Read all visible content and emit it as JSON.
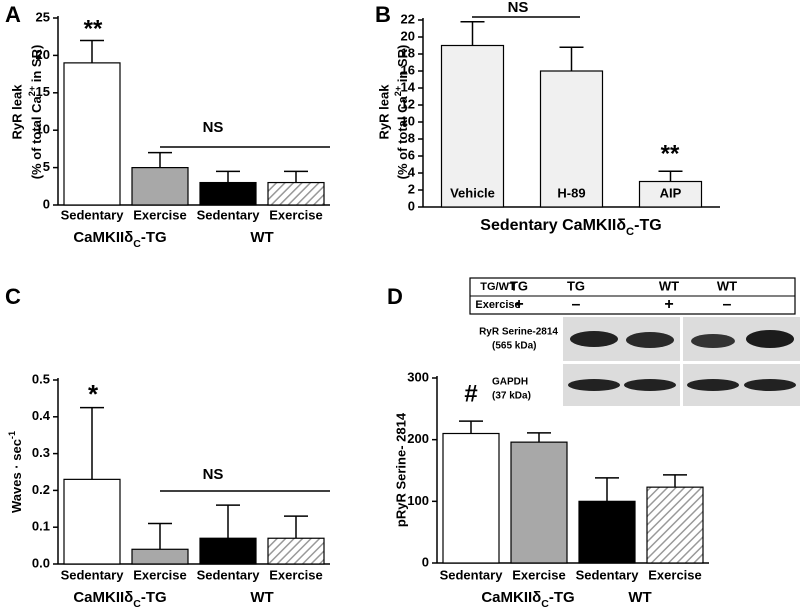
{
  "chart_data": [
    {
      "type": "bar",
      "label": "A",
      "ylabel": [
        "RyR leak",
        [
          "(% of total Ca",
          "2+",
          " in SR)"
        ]
      ],
      "categories": [
        "Sedentary",
        "Exercise",
        "Sedentary",
        "Exercise"
      ],
      "groups": [
        [
          "CaMKIIδ",
          "C",
          "-TG"
        ],
        "WT"
      ],
      "values": [
        19,
        5,
        3,
        3
      ],
      "errors": [
        3,
        2,
        1.5,
        1.5
      ],
      "colors": [
        "#ffffff",
        "#a8a8a8",
        "#000000",
        "#ffffff"
      ],
      "hatched": [
        false,
        false,
        false,
        true
      ],
      "annotations": [
        "**",
        "NS"
      ],
      "ylim": [
        0,
        25
      ],
      "yticks": [
        0,
        5,
        10,
        15,
        20,
        25
      ]
    },
    {
      "type": "bar",
      "label": "B",
      "ylabel": [
        "RyR leak",
        [
          "(% of total Ca",
          "2+",
          " in SR)"
        ]
      ],
      "categories": [
        "Vehicle",
        "H-89",
        "AIP"
      ],
      "xlabel": [
        "Sedentary CaMKIIδ",
        "C",
        "-TG"
      ],
      "values": [
        19,
        16,
        3
      ],
      "errors": [
        2.8,
        2.8,
        1.2
      ],
      "colors": [
        "#f0f0f0",
        "#f0f0f0",
        "#f0f0f0"
      ],
      "hatched": [
        false,
        false,
        false
      ],
      "annotations": [
        "NS",
        "**"
      ],
      "ylim": [
        0,
        22
      ],
      "yticks": [
        0,
        2,
        4,
        6,
        8,
        10,
        12,
        14,
        16,
        18,
        20,
        22
      ]
    },
    {
      "type": "bar",
      "label": "C",
      "ylabel": [
        [
          "Waves · sec",
          "-1"
        ]
      ],
      "categories": [
        "Sedentary",
        "Exercise",
        "Sedentary",
        "Exercise"
      ],
      "groups": [
        [
          "CaMKIIδ",
          "C",
          "-TG"
        ],
        "WT"
      ],
      "values": [
        0.23,
        0.04,
        0.07,
        0.07
      ],
      "errors": [
        0.195,
        0.07,
        0.09,
        0.06
      ],
      "colors": [
        "#ffffff",
        "#a8a8a8",
        "#000000",
        "#ffffff"
      ],
      "hatched": [
        false,
        false,
        false,
        true
      ],
      "annotations": [
        "*",
        "NS"
      ],
      "ylim": [
        0,
        0.5
      ],
      "yticks": [
        {
          "value": 0,
          "label": "0.0"
        },
        0.1,
        0.2,
        0.3,
        0.4,
        0.5
      ]
    },
    {
      "type": "bar",
      "label": "D",
      "ylabel": [
        "pRyR Serine- 2814"
      ],
      "categories": [
        "Sedentary",
        "Exercise",
        "Sedentary",
        "Exercise"
      ],
      "groups": [
        [
          "CaMKIIδ",
          "C",
          "-TG"
        ],
        "WT"
      ],
      "values": [
        210,
        196,
        100,
        123
      ],
      "errors": [
        20,
        15,
        38,
        20
      ],
      "colors": [
        "#ffffff",
        "#a8a8a8",
        "#000000",
        "#ffffff"
      ],
      "hatched": [
        false,
        false,
        false,
        true
      ],
      "annotations": [
        "#"
      ],
      "ylim": [
        0,
        300
      ],
      "yticks": [
        0,
        100,
        200,
        300
      ]
    }
  ],
  "blot": {
    "header": [
      "TG/WT",
      "TG",
      "TG",
      "WT",
      "WT"
    ],
    "exercise": [
      "Exercise",
      "+",
      "–",
      "+",
      "–"
    ],
    "bands": [
      [
        "RyR Serine-2814",
        "(565 kDa)"
      ],
      [
        "GAPDH",
        "(37 kDa)"
      ]
    ]
  }
}
